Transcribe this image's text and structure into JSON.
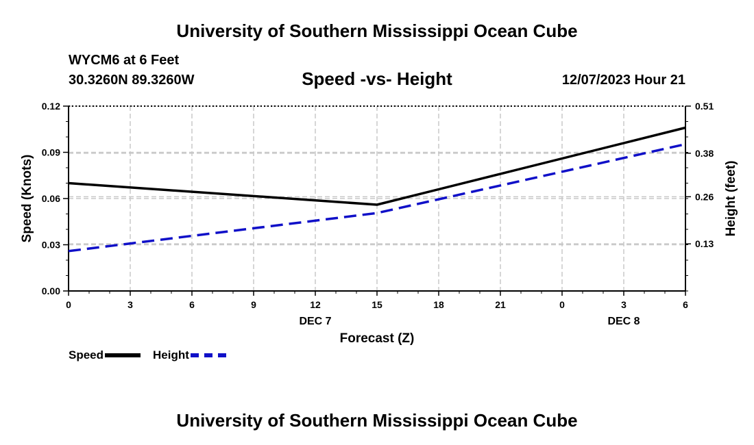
{
  "header": {
    "title": "University of Southern Mississippi Ocean Cube",
    "station": "WYCM6 at 6 Feet",
    "coordinates": "30.3260N  89.3260W",
    "subtitle": "Speed -vs- Height",
    "datetime": "12/07/2023 Hour 21"
  },
  "footer": {
    "title": "University of Southern Mississippi Ocean Cube"
  },
  "legend": {
    "speed_label": "Speed",
    "height_label": "Height"
  },
  "chart_data": {
    "type": "line",
    "title": "Speed -vs- Height",
    "xlabel": "Forecast (Z)",
    "ylabel": "Speed (Knots)",
    "y2label": "Height (feet)",
    "x": [
      0,
      15,
      30
    ],
    "x_ticks": [
      "0",
      "3",
      "6",
      "9",
      "12",
      "15",
      "18",
      "21",
      "0",
      "3",
      "6"
    ],
    "date_labels": [
      {
        "label": "DEC 7",
        "x": 12
      },
      {
        "label": "DEC 8",
        "x": 27
      }
    ],
    "ylim": [
      0,
      0.12
    ],
    "y_ticks": [
      "0.00",
      "0.03",
      "0.06",
      "0.09",
      "0.12"
    ],
    "y2lim": [
      0,
      0.51
    ],
    "y2_ticks": [
      {
        "label": "0.13",
        "value": 0.13
      },
      {
        "label": "0.26",
        "value": 0.26
      },
      {
        "label": "0.38",
        "value": 0.38
      },
      {
        "label": "0.51",
        "value": 0.51
      }
    ],
    "grid": true,
    "series": [
      {
        "name": "Speed",
        "axis": "left",
        "color": "#000000",
        "style": "solid",
        "x": [
          0,
          15,
          30
        ],
        "values": [
          0.07,
          0.056,
          0.106
        ]
      },
      {
        "name": "Height",
        "axis": "right",
        "color": "#1010c8",
        "style": "dashed",
        "x": [
          0,
          15,
          30
        ],
        "values": [
          0.11,
          0.215,
          0.405
        ]
      }
    ],
    "legend_position": "bottom-left"
  }
}
